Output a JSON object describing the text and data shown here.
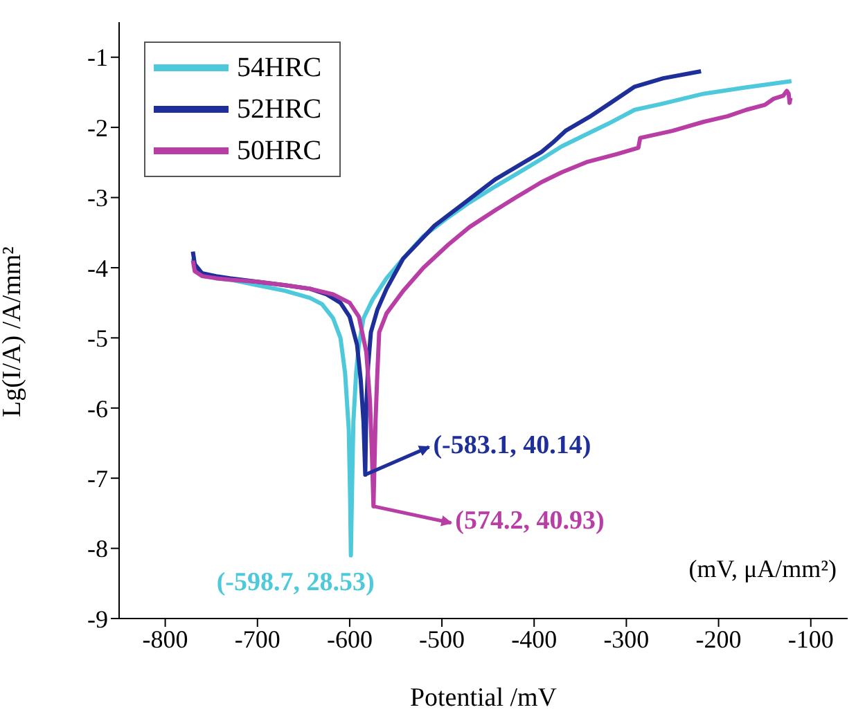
{
  "chart_data": {
    "type": "line",
    "xlabel": "Potential /mV",
    "ylabel": "Lg(I/A) /A/mm²",
    "xlim": [
      -850,
      -60
    ],
    "xticks": [
      -800,
      -700,
      -600,
      -500,
      -400,
      -300,
      -200,
      -100
    ],
    "ylim": [
      -9,
      -0.5
    ],
    "yticks": [
      -9,
      -8,
      -7,
      -6,
      -5,
      -4,
      -3,
      -2,
      -1
    ],
    "legend": "top left",
    "series": [
      {
        "name": "54HRC",
        "color": "#4ec9dc",
        "x": [
          -770,
          -768,
          -760,
          -745,
          -730,
          -700,
          -670,
          -643,
          -630,
          -618,
          -610,
          -605,
          -601,
          -599.5,
          -598.7,
          -597.5,
          -596,
          -593,
          -590,
          -585,
          -575,
          -560,
          -542,
          -520,
          -493,
          -470,
          -442,
          -420,
          -392,
          -370,
          -342,
          -320,
          -291,
          -260,
          -216,
          -170,
          -121
        ],
        "values": [
          -3.87,
          -4.0,
          -4.1,
          -4.15,
          -4.17,
          -4.25,
          -4.33,
          -4.43,
          -4.52,
          -4.72,
          -5.0,
          -5.5,
          -6.3,
          -7.3,
          -8.1,
          -7.2,
          -6.2,
          -5.5,
          -5.1,
          -4.72,
          -4.45,
          -4.15,
          -3.87,
          -3.55,
          -3.28,
          -3.07,
          -2.84,
          -2.67,
          -2.45,
          -2.27,
          -2.09,
          -1.95,
          -1.75,
          -1.66,
          -1.52,
          -1.43,
          -1.34
        ]
      },
      {
        "name": "52HRC",
        "color": "#1f2f9a",
        "x": [
          -770,
          -768,
          -760,
          -745,
          -730,
          -670,
          -643,
          -625,
          -610,
          -600,
          -592,
          -588,
          -585,
          -583.1,
          -582,
          -580,
          -577,
          -570,
          -560,
          -542,
          -508,
          -470,
          -442,
          -392,
          -380,
          -366,
          -340,
          -317,
          -291,
          -260,
          -219
        ],
        "values": [
          -3.77,
          -3.95,
          -4.08,
          -4.12,
          -4.15,
          -4.25,
          -4.3,
          -4.38,
          -4.5,
          -4.7,
          -5.1,
          -5.6,
          -6.2,
          -6.95,
          -6.0,
          -5.4,
          -4.92,
          -4.6,
          -4.3,
          -3.87,
          -3.4,
          -3.02,
          -2.74,
          -2.35,
          -2.22,
          -2.05,
          -1.85,
          -1.65,
          -1.42,
          -1.3,
          -1.2
        ]
      },
      {
        "name": "50HRC",
        "color": "#b83ea6",
        "x": [
          -770,
          -768,
          -760,
          -745,
          -730,
          -700,
          -670,
          -643,
          -618,
          -600,
          -590,
          -582,
          -578,
          -576,
          -574.2,
          -572,
          -570,
          -568,
          -560,
          -542,
          -520,
          -493,
          -470,
          -442,
          -420,
          -392,
          -370,
          -342,
          -310,
          -287,
          -285,
          -250,
          -216,
          -190,
          -170,
          -150,
          -140,
          -130,
          -126,
          -124,
          -123,
          -122
        ],
        "values": [
          -3.9,
          -4.05,
          -4.12,
          -4.15,
          -4.17,
          -4.2,
          -4.25,
          -4.3,
          -4.38,
          -4.5,
          -4.7,
          -5.2,
          -5.9,
          -6.6,
          -7.4,
          -6.2,
          -5.5,
          -4.92,
          -4.65,
          -4.33,
          -4.0,
          -3.67,
          -3.42,
          -3.18,
          -3.0,
          -2.78,
          -2.64,
          -2.49,
          -2.38,
          -2.29,
          -2.15,
          -2.05,
          -1.92,
          -1.84,
          -1.75,
          -1.68,
          -1.59,
          -1.55,
          -1.48,
          -1.52,
          -1.65,
          -1.58
        ]
      }
    ],
    "annotations": [
      {
        "text": "(-598.7, 28.53)",
        "x": -598.7,
        "y": -8.1
      },
      {
        "text": "(-583.1, 40.14)",
        "x": -583.1,
        "y": -6.95
      },
      {
        "text": "(574.2, 40.93)",
        "x": -574.2,
        "y": -7.4
      },
      "(mV, μA/mm²)"
    ]
  }
}
